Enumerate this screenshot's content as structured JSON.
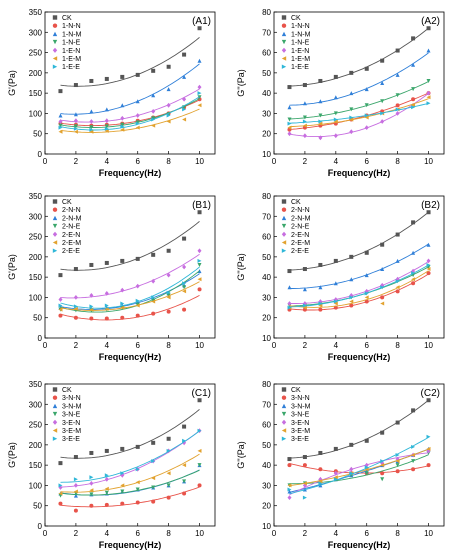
{
  "palette": {
    "CK": "#555555",
    "N": "#e8534a",
    "M": "#2f7fd8",
    "E": "#3aa66b",
    "EN": "#c76ee0",
    "EM": "#e2a22f",
    "EE": "#2fb7d8"
  },
  "chart_data": [
    {
      "id": "A1",
      "type": "scatter",
      "panel_label": "(A1)",
      "xlabel": "Frequency(Hz)",
      "ylabel": "G'(Pa)",
      "xlim": [
        0,
        11
      ],
      "ylim": [
        0,
        350
      ],
      "xticks": [
        0,
        2,
        4,
        6,
        8,
        10
      ],
      "yticks": [
        0,
        50,
        100,
        150,
        200,
        250,
        300,
        350
      ],
      "x": [
        1,
        2,
        3,
        4,
        5,
        6,
        7,
        8,
        9,
        10
      ],
      "legend_position": "top-left",
      "series": [
        {
          "name": "CK",
          "marker": "square",
          "color_key": "CK",
          "values": [
            155,
            170,
            180,
            185,
            190,
            195,
            205,
            215,
            245,
            310
          ]
        },
        {
          "name": "1-N-N",
          "marker": "circle",
          "color_key": "N",
          "values": [
            75,
            72,
            70,
            72,
            75,
            82,
            90,
            100,
            115,
            135
          ]
        },
        {
          "name": "1-N-M",
          "marker": "triangle-up",
          "color_key": "M",
          "values": [
            95,
            98,
            105,
            110,
            120,
            130,
            145,
            160,
            190,
            230
          ]
        },
        {
          "name": "1-N-E",
          "marker": "triangle-down",
          "color_key": "E",
          "values": [
            70,
            68,
            66,
            68,
            72,
            78,
            88,
            98,
            115,
            140
          ]
        },
        {
          "name": "1-E-N",
          "marker": "diamond",
          "color_key": "EN",
          "values": [
            80,
            82,
            80,
            82,
            88,
            95,
            105,
            120,
            135,
            165
          ]
        },
        {
          "name": "1-E-M",
          "marker": "triangle-left",
          "color_key": "EM",
          "values": [
            55,
            55,
            55,
            57,
            60,
            65,
            70,
            80,
            85,
            120
          ]
        },
        {
          "name": "1-E-E",
          "marker": "triangle-right",
          "color_key": "EE",
          "values": [
            65,
            62,
            60,
            62,
            68,
            75,
            85,
            95,
            110,
            150
          ]
        }
      ]
    },
    {
      "id": "A2",
      "type": "scatter",
      "panel_label": "(A2)",
      "xlabel": "Frequency(Hz)",
      "ylabel": "G''(Pa)",
      "xlim": [
        0,
        11
      ],
      "ylim": [
        10,
        80
      ],
      "xticks": [
        0,
        2,
        4,
        6,
        8,
        10
      ],
      "yticks": [
        10,
        20,
        30,
        40,
        50,
        60,
        70,
        80
      ],
      "x": [
        1,
        2,
        3,
        4,
        5,
        6,
        7,
        8,
        9,
        10
      ],
      "legend_position": "top-left",
      "series": [
        {
          "name": "CK",
          "marker": "square",
          "color_key": "CK",
          "values": [
            43,
            44,
            46,
            48,
            50,
            52,
            56,
            61,
            67,
            72
          ]
        },
        {
          "name": "1-N-N",
          "marker": "circle",
          "color_key": "N",
          "values": [
            22,
            23,
            24,
            25,
            27,
            29,
            31,
            34,
            37,
            40
          ]
        },
        {
          "name": "1-N-M",
          "marker": "triangle-up",
          "color_key": "M",
          "values": [
            33,
            35,
            36,
            38,
            40,
            42,
            45,
            49,
            54,
            61
          ]
        },
        {
          "name": "1-N-E",
          "marker": "triangle-down",
          "color_key": "E",
          "values": [
            27,
            28,
            29,
            30,
            32,
            34,
            36,
            39,
            42,
            46
          ]
        },
        {
          "name": "1-E-N",
          "marker": "diamond",
          "color_key": "EN",
          "values": [
            20,
            19,
            18,
            19,
            21,
            23,
            26,
            30,
            34,
            40
          ]
        },
        {
          "name": "1-E-M",
          "marker": "triangle-left",
          "color_key": "EM",
          "values": [
            23,
            24,
            25,
            26,
            27,
            28,
            30,
            32,
            34,
            38
          ]
        },
        {
          "name": "1-E-E",
          "marker": "triangle-right",
          "color_key": "EE",
          "values": [
            25,
            26,
            26,
            27,
            28,
            29,
            30,
            32,
            33,
            35
          ]
        }
      ]
    },
    {
      "id": "B1",
      "type": "scatter",
      "panel_label": "(B1)",
      "xlabel": "Frequency(Hz)",
      "ylabel": "G'(Pa)",
      "xlim": [
        0,
        11
      ],
      "ylim": [
        0,
        350
      ],
      "xticks": [
        0,
        2,
        4,
        6,
        8,
        10
      ],
      "yticks": [
        0,
        50,
        100,
        150,
        200,
        250,
        300,
        350
      ],
      "x": [
        1,
        2,
        3,
        4,
        5,
        6,
        7,
        8,
        9,
        10
      ],
      "legend_position": "top-left",
      "series": [
        {
          "name": "CK",
          "marker": "square",
          "color_key": "CK",
          "values": [
            155,
            170,
            180,
            185,
            190,
            195,
            205,
            215,
            245,
            310
          ]
        },
        {
          "name": "2-N-N",
          "marker": "circle",
          "color_key": "N",
          "values": [
            55,
            50,
            48,
            48,
            50,
            55,
            60,
            65,
            70,
            120
          ]
        },
        {
          "name": "2-N-M",
          "marker": "triangle-up",
          "color_key": "M",
          "values": [
            75,
            72,
            72,
            75,
            80,
            88,
            98,
            110,
            130,
            165
          ]
        },
        {
          "name": "2-N-E",
          "marker": "triangle-down",
          "color_key": "E",
          "values": [
            70,
            68,
            68,
            70,
            75,
            82,
            92,
            105,
            125,
            180
          ]
        },
        {
          "name": "2-E-N",
          "marker": "diamond",
          "color_key": "EN",
          "values": [
            95,
            100,
            105,
            110,
            118,
            128,
            140,
            155,
            175,
            215
          ]
        },
        {
          "name": "2-E-M",
          "marker": "triangle-left",
          "color_key": "EM",
          "values": [
            70,
            72,
            70,
            72,
            75,
            80,
            90,
            100,
            115,
            145
          ]
        },
        {
          "name": "2-E-E",
          "marker": "triangle-right",
          "color_key": "EE",
          "values": [
            80,
            78,
            78,
            80,
            85,
            92,
            100,
            112,
            135,
            190
          ]
        }
      ]
    },
    {
      "id": "B2",
      "type": "scatter",
      "panel_label": "(B2)",
      "xlabel": "Frequency(Hz)",
      "ylabel": "G''(Pa)",
      "xlim": [
        0,
        11
      ],
      "ylim": [
        10,
        80
      ],
      "xticks": [
        0,
        2,
        4,
        6,
        8,
        10
      ],
      "yticks": [
        10,
        20,
        30,
        40,
        50,
        60,
        70,
        80
      ],
      "x": [
        1,
        2,
        3,
        4,
        5,
        6,
        7,
        8,
        9,
        10
      ],
      "legend_position": "top-left",
      "series": [
        {
          "name": "CK",
          "marker": "square",
          "color_key": "CK",
          "values": [
            43,
            44,
            46,
            48,
            50,
            52,
            56,
            61,
            67,
            72
          ]
        },
        {
          "name": "2-N-N",
          "marker": "circle",
          "color_key": "N",
          "values": [
            24,
            24,
            24,
            25,
            26,
            28,
            30,
            33,
            37,
            42
          ]
        },
        {
          "name": "2-N-M",
          "marker": "triangle-up",
          "color_key": "M",
          "values": [
            35,
            34,
            35,
            37,
            39,
            41,
            44,
            48,
            52,
            56
          ]
        },
        {
          "name": "2-N-E",
          "marker": "triangle-down",
          "color_key": "E",
          "values": [
            26,
            26,
            27,
            28,
            30,
            32,
            35,
            38,
            41,
            45
          ]
        },
        {
          "name": "2-E-N",
          "marker": "diamond",
          "color_key": "EN",
          "values": [
            27,
            27,
            28,
            29,
            31,
            33,
            36,
            39,
            43,
            48
          ]
        },
        {
          "name": "2-E-M",
          "marker": "triangle-left",
          "color_key": "EM",
          "values": [
            25,
            25,
            26,
            27,
            28,
            30,
            27,
            35,
            39,
            44
          ]
        },
        {
          "name": "2-E-E",
          "marker": "triangle-right",
          "color_key": "EE",
          "values": [
            25,
            26,
            27,
            28,
            30,
            32,
            35,
            38,
            42,
            46
          ]
        }
      ]
    },
    {
      "id": "C1",
      "type": "scatter",
      "panel_label": "(C1)",
      "xlabel": "Frequency(Hz)",
      "ylabel": "G'(Pa)",
      "xlim": [
        0,
        11
      ],
      "ylim": [
        0,
        350
      ],
      "xticks": [
        0,
        2,
        4,
        6,
        8,
        10
      ],
      "yticks": [
        0,
        50,
        100,
        150,
        200,
        250,
        300,
        350
      ],
      "x": [
        1,
        2,
        3,
        4,
        5,
        6,
        7,
        8,
        9,
        10
      ],
      "legend_position": "top-left",
      "series": [
        {
          "name": "CK",
          "marker": "square",
          "color_key": "CK",
          "values": [
            155,
            170,
            180,
            185,
            190,
            195,
            205,
            215,
            245,
            310
          ]
        },
        {
          "name": "3-N-N",
          "marker": "circle",
          "color_key": "N",
          "values": [
            55,
            38,
            50,
            52,
            55,
            58,
            60,
            70,
            80,
            100
          ]
        },
        {
          "name": "3-N-M",
          "marker": "triangle-up",
          "color_key": "M",
          "values": [
            80,
            75,
            78,
            80,
            85,
            90,
            95,
            100,
            110,
            150
          ]
        },
        {
          "name": "3-N-E",
          "marker": "triangle-down",
          "color_key": "E",
          "values": [
            75,
            80,
            78,
            82,
            85,
            90,
            95,
            100,
            110,
            150
          ]
        },
        {
          "name": "3-E-N",
          "marker": "diamond",
          "color_key": "EN",
          "values": [
            95,
            100,
            105,
            115,
            125,
            140,
            160,
            185,
            205,
            235
          ]
        },
        {
          "name": "3-E-M",
          "marker": "triangle-left",
          "color_key": "EM",
          "values": [
            80,
            85,
            88,
            92,
            100,
            108,
            118,
            130,
            150,
            185
          ]
        },
        {
          "name": "3-E-E",
          "marker": "triangle-right",
          "color_key": "EE",
          "values": [
            100,
            115,
            120,
            125,
            130,
            140,
            160,
            185,
            210,
            235
          ]
        }
      ]
    },
    {
      "id": "C2",
      "type": "scatter",
      "panel_label": "(C2)",
      "xlabel": "Frequency(Hz)",
      "ylabel": "G''(Pa)",
      "xlim": [
        0,
        11
      ],
      "ylim": [
        10,
        80
      ],
      "xticks": [
        0,
        2,
        4,
        6,
        8,
        10
      ],
      "yticks": [
        10,
        20,
        30,
        40,
        50,
        60,
        70,
        80
      ],
      "x": [
        1,
        2,
        3,
        4,
        5,
        6,
        7,
        8,
        9,
        10
      ],
      "legend_position": "top-left",
      "series": [
        {
          "name": "CK",
          "marker": "square",
          "color_key": "CK",
          "values": [
            43,
            44,
            46,
            48,
            50,
            52,
            56,
            61,
            67,
            72
          ]
        },
        {
          "name": "3-N-N",
          "marker": "circle",
          "color_key": "N",
          "values": [
            40,
            40,
            38,
            37,
            36,
            36,
            36,
            37,
            38,
            40
          ]
        },
        {
          "name": "3-N-M",
          "marker": "triangle-up",
          "color_key": "M",
          "values": [
            27,
            28,
            30,
            33,
            35,
            37,
            40,
            42,
            45,
            48
          ]
        },
        {
          "name": "3-N-E",
          "marker": "triangle-down",
          "color_key": "E",
          "values": [
            30,
            31,
            32,
            33,
            35,
            36,
            33,
            40,
            42,
            46
          ]
        },
        {
          "name": "3-E-N",
          "marker": "diamond",
          "color_key": "EN",
          "values": [
            24,
            30,
            33,
            36,
            38,
            40,
            41,
            43,
            45,
            47
          ]
        },
        {
          "name": "3-E-M",
          "marker": "triangle-left",
          "color_key": "EM",
          "values": [
            30,
            31,
            32,
            34,
            36,
            38,
            40,
            42,
            45,
            48
          ]
        },
        {
          "name": "3-E-E",
          "marker": "triangle-right",
          "color_key": "EE",
          "values": [
            28,
            24,
            31,
            33,
            36,
            39,
            42,
            45,
            49,
            54
          ]
        }
      ]
    }
  ]
}
